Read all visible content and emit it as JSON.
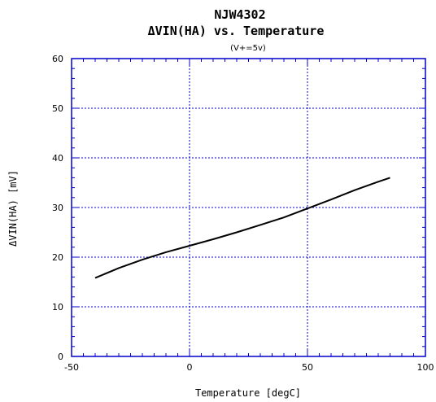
{
  "chart_data": {
    "type": "line",
    "title_line1": "NJW4302",
    "title_line2": "ΔVIN(HA) vs. Temperature",
    "subtitle": "(V+=5v)",
    "xlabel": "Temperature [degC]",
    "ylabel": "ΔVIN(HA) [mV]",
    "xlim": [
      -50,
      100
    ],
    "ylim": [
      0,
      60
    ],
    "x_ticks": [
      "-50",
      "0",
      "50",
      "100"
    ],
    "y_ticks": [
      "0",
      "10",
      "20",
      "30",
      "40",
      "50",
      "60"
    ],
    "grid": true,
    "colors": {
      "grid": "#0000cc",
      "frame": "#0000cc",
      "series": "#000000"
    },
    "series": [
      {
        "x": [
          -40,
          -30,
          -20,
          -10,
          0,
          10,
          20,
          30,
          40,
          50,
          60,
          70,
          80,
          85
        ],
        "values": [
          15.8,
          17.8,
          19.5,
          21.0,
          22.3,
          23.6,
          25.0,
          26.5,
          28.0,
          29.8,
          31.6,
          33.5,
          35.2,
          36.0
        ]
      }
    ]
  }
}
